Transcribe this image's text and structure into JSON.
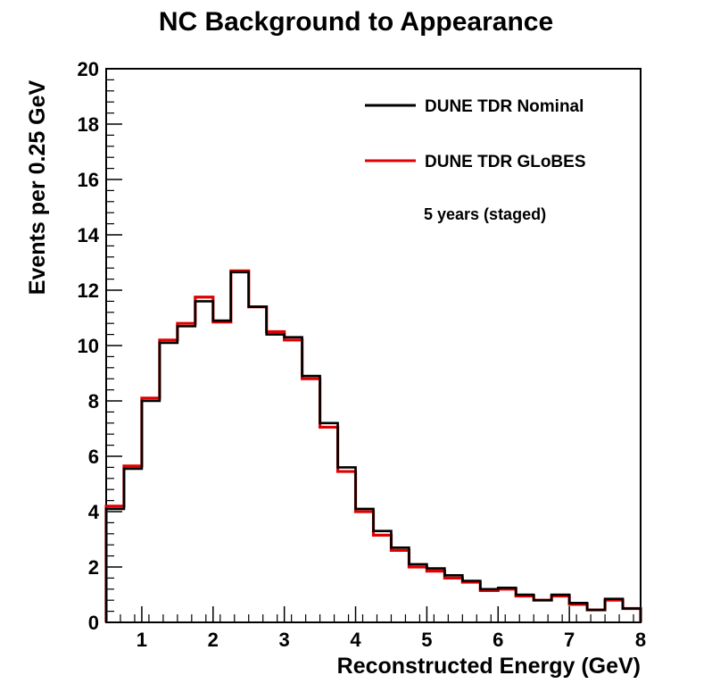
{
  "chart_data": {
    "type": "line",
    "style": "step-histogram",
    "title": "NC Background to Appearance",
    "xlabel": "Reconstructed Energy (GeV)",
    "ylabel": "Events per 0.25 GeV",
    "xlim": [
      0.5,
      8
    ],
    "ylim": [
      0,
      20
    ],
    "bin_width": 0.25,
    "x_ticks": [
      1,
      2,
      3,
      4,
      5,
      6,
      7,
      8
    ],
    "y_ticks": [
      0,
      2,
      4,
      6,
      8,
      10,
      12,
      14,
      16,
      18,
      20
    ],
    "grid": false,
    "legend_position": "top-right",
    "x": [
      0.5,
      0.75,
      1.0,
      1.25,
      1.5,
      1.75,
      2.0,
      2.25,
      2.5,
      2.75,
      3.0,
      3.25,
      3.5,
      3.75,
      4.0,
      4.25,
      4.5,
      4.75,
      5.0,
      5.25,
      5.5,
      5.75,
      6.0,
      6.25,
      6.5,
      6.75,
      7.0,
      7.25,
      7.5,
      7.75
    ],
    "series": [
      {
        "name": "DUNE TDR Nominal",
        "color": "#000000",
        "values": [
          4.1,
          5.55,
          8.0,
          10.1,
          10.7,
          11.6,
          10.9,
          12.65,
          11.4,
          10.4,
          10.3,
          8.9,
          7.2,
          5.6,
          4.1,
          3.3,
          2.7,
          2.1,
          1.95,
          1.7,
          1.5,
          1.2,
          1.25,
          1.0,
          0.8,
          1.0,
          0.7,
          0.45,
          0.85,
          0.5
        ]
      },
      {
        "name": "DUNE TDR GLoBES",
        "color": "#e00000",
        "values": [
          4.2,
          5.65,
          8.1,
          10.2,
          10.8,
          11.75,
          10.85,
          12.7,
          11.4,
          10.5,
          10.2,
          8.8,
          7.05,
          5.45,
          4.0,
          3.15,
          2.6,
          2.0,
          1.85,
          1.6,
          1.45,
          1.15,
          1.2,
          0.95,
          0.8,
          0.95,
          0.65,
          0.45,
          0.8,
          0.5
        ]
      }
    ],
    "annotation": "5 years (staged)"
  }
}
